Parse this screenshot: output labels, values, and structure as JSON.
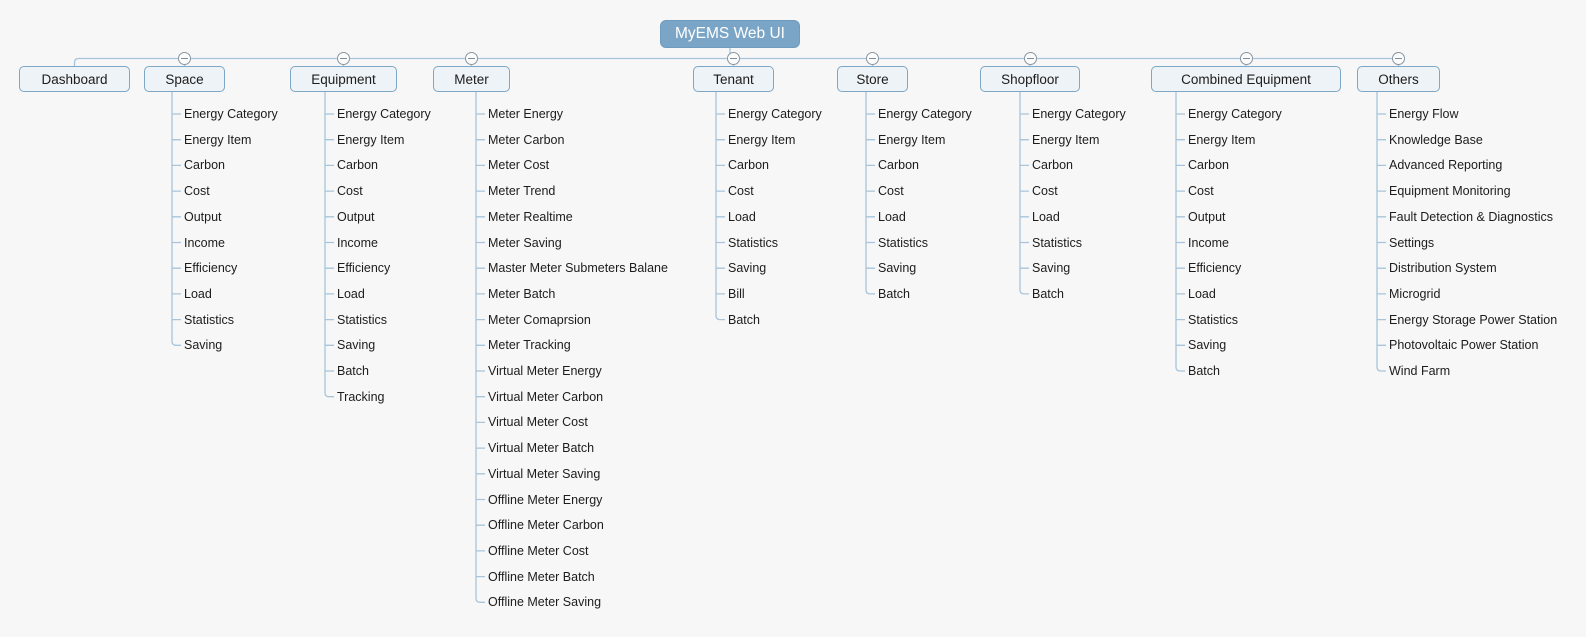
{
  "tree": {
    "root": {
      "label": "MyEMS Web UI"
    },
    "branches": [
      {
        "label": "Dashboard",
        "children": []
      },
      {
        "label": "Space",
        "children": [
          "Energy Category",
          "Energy Item",
          "Carbon",
          "Cost",
          "Output",
          "Income",
          "Efficiency",
          "Load",
          "Statistics",
          "Saving"
        ]
      },
      {
        "label": "Equipment",
        "children": [
          "Energy Category",
          "Energy Item",
          "Carbon",
          "Cost",
          "Output",
          "Income",
          "Efficiency",
          "Load",
          "Statistics",
          "Saving",
          "Batch",
          "Tracking"
        ]
      },
      {
        "label": "Meter",
        "children": [
          "Meter Energy",
          "Meter Carbon",
          "Meter Cost",
          "Meter Trend",
          "Meter Realtime",
          "Meter Saving",
          "Master Meter Submeters Balane",
          "Meter Batch",
          "Meter Comaprsion",
          "Meter Tracking",
          "Virtual Meter Energy",
          "Virtual Meter Carbon",
          "Virtual Meter Cost",
          "Virtual Meter Batch",
          "Virtual Meter Saving",
          "Offline Meter Energy",
          "Offline Meter Carbon",
          "Offline Meter Cost",
          "Offline Meter Batch",
          "Offline Meter Saving"
        ]
      },
      {
        "label": "Tenant",
        "children": [
          "Energy Category",
          "Energy Item",
          "Carbon",
          "Cost",
          "Load",
          "Statistics",
          "Saving",
          "Bill",
          "Batch"
        ]
      },
      {
        "label": "Store",
        "children": [
          "Energy Category",
          "Energy Item",
          "Carbon",
          "Cost",
          "Load",
          "Statistics",
          "Saving",
          "Batch"
        ]
      },
      {
        "label": "Shopfloor",
        "children": [
          "Energy Category",
          "Energy Item",
          "Carbon",
          "Cost",
          "Load",
          "Statistics",
          "Saving",
          "Batch"
        ]
      },
      {
        "label": "Combined Equipment",
        "children": [
          "Energy Category",
          "Energy Item",
          "Carbon",
          "Cost",
          "Output",
          "Income",
          "Efficiency",
          "Load",
          "Statistics",
          "Saving",
          "Batch"
        ]
      },
      {
        "label": "Others",
        "children": [
          "Energy Flow",
          "Knowledge Base",
          "Advanced Reporting",
          "Equipment Monitoring",
          "Fault Detection & Diagnostics",
          "Settings",
          "Distribution System",
          "Microgrid",
          "Energy Storage Power Station",
          "Photovoltaic Power Station",
          "Wind Farm"
        ]
      }
    ],
    "toggle_icon": "minus-circle"
  },
  "colors": {
    "background": "#f7f7f7",
    "root_fill": "#7aa5c6",
    "root_text": "#ffffff",
    "node_fill": "#eef3f7",
    "node_border": "#7da7c5",
    "node_text": "#1c1c1c",
    "connector": "#a7c4da",
    "toggle_border": "#8796a1"
  }
}
